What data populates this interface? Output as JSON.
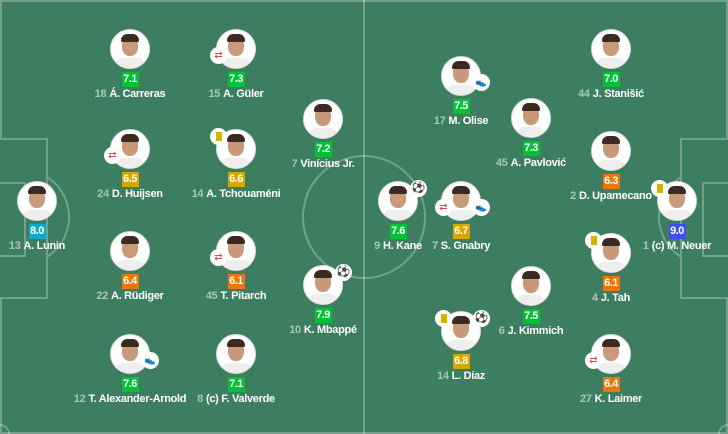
{
  "rating_colors": {
    "green": "#00c234",
    "gold": "#d4a800",
    "orange": "#e8780a",
    "cyan": "#12a9c9",
    "blue": "#3d4ff2"
  },
  "home": [
    {
      "number": "18",
      "name": "Á. Carreras",
      "rating": "7.1",
      "color": "green",
      "events": []
    },
    {
      "number": "15",
      "name": "A. Güler",
      "rating": "7.3",
      "color": "green",
      "events": [
        "substitution"
      ]
    },
    {
      "number": "7",
      "name": "Vinícius Jr.",
      "rating": "7.2",
      "color": "green",
      "events": []
    },
    {
      "number": "24",
      "name": "D. Huijsen",
      "rating": "6.5",
      "color": "gold",
      "events": [
        "substitution"
      ]
    },
    {
      "number": "14",
      "name": "A. Tchouaméni",
      "rating": "6.6",
      "color": "gold",
      "events": [
        "yellow-card"
      ]
    },
    {
      "number": "13",
      "name": "A. Lunin",
      "rating": "8.0",
      "color": "cyan",
      "events": []
    },
    {
      "number": "22",
      "name": "A. Rüdiger",
      "rating": "6.4",
      "color": "orange",
      "events": []
    },
    {
      "number": "45",
      "name": "T. Pitarch",
      "rating": "6.1",
      "color": "orange",
      "events": [
        "substitution"
      ]
    },
    {
      "number": "10",
      "name": "K. Mbappé",
      "rating": "7.9",
      "color": "green",
      "events": [
        "goal"
      ]
    },
    {
      "number": "12",
      "name": "T. Alexander-Arnold",
      "rating": "7.6",
      "color": "green",
      "events": [
        "assist"
      ]
    },
    {
      "number": "8",
      "name": "(c) F. Valverde",
      "rating": "7.1",
      "color": "green",
      "events": []
    }
  ],
  "away": [
    {
      "number": "44",
      "name": "J. Stanišić",
      "rating": "7.0",
      "color": "green",
      "events": []
    },
    {
      "number": "17",
      "name": "M. Olise",
      "rating": "7.5",
      "color": "green",
      "events": [
        "assist"
      ]
    },
    {
      "number": "45",
      "name": "A. Pavlović",
      "rating": "7.3",
      "color": "green",
      "events": []
    },
    {
      "number": "2",
      "name": "D. Upamecano",
      "rating": "6.3",
      "color": "orange",
      "events": []
    },
    {
      "number": "9",
      "name": "H. Kane",
      "rating": "7.6",
      "color": "green",
      "events": [
        "goal"
      ]
    },
    {
      "number": "7",
      "name": "S. Gnabry",
      "rating": "6.7",
      "color": "gold",
      "events": [
        "substitution",
        "assist"
      ]
    },
    {
      "number": "1",
      "name": "(c) M. Neuer",
      "rating": "9.0",
      "color": "blue",
      "events": [
        "yellow-card"
      ]
    },
    {
      "number": "4",
      "name": "J. Tah",
      "rating": "6.1",
      "color": "orange",
      "events": [
        "yellow-card"
      ]
    },
    {
      "number": "6",
      "name": "J. Kimmich",
      "rating": "7.5",
      "color": "green",
      "events": []
    },
    {
      "number": "14",
      "name": "L. Díaz",
      "rating": "6.8",
      "color": "gold",
      "events": [
        "yellow-card",
        "goal"
      ]
    },
    {
      "number": "27",
      "name": "K. Laimer",
      "rating": "6.4",
      "color": "orange",
      "events": [
        "substitution"
      ]
    }
  ]
}
